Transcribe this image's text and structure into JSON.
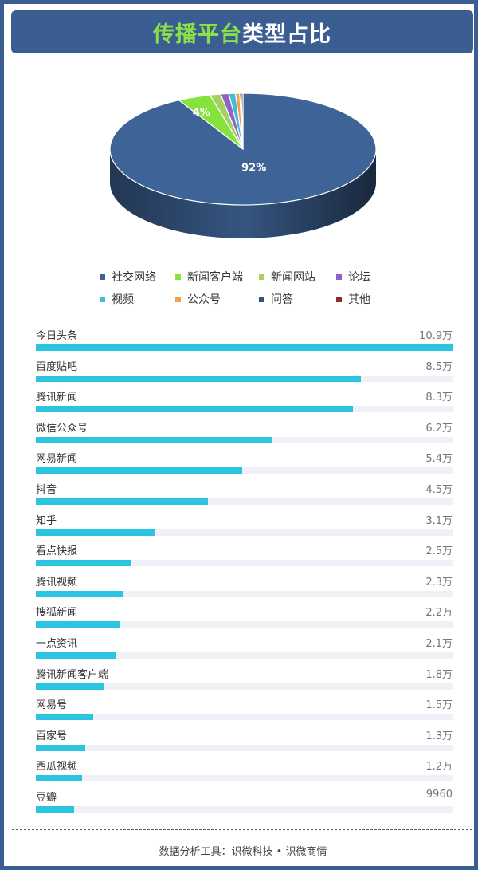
{
  "header": {
    "title_accent": "传播平台",
    "title_rest": "类型占比"
  },
  "colors": {
    "frame": "#3a5e91",
    "accent": "#8be04a",
    "bar": "#2cc5e1",
    "bar_track": "#eef2f6"
  },
  "chart_data": [
    {
      "type": "pie",
      "style": "3d",
      "categories": [
        "社交网络",
        "新闻客户端",
        "新闻网站",
        "论坛",
        "视频",
        "公众号",
        "问答",
        "其他"
      ],
      "values": [
        92,
        4,
        1.3,
        1,
        0.8,
        0.5,
        0.2,
        0.2
      ],
      "data_labels": [
        "92%",
        "4%",
        "",
        "",
        "",
        "",
        "",
        ""
      ],
      "colors": [
        "#3e6497",
        "#86e23c",
        "#a6d162",
        "#8c64c6",
        "#46b9d4",
        "#f0a04b",
        "#2f5380",
        "#8b2e2e"
      ],
      "legend_position": "bottom",
      "title": ""
    },
    {
      "type": "bar",
      "orientation": "horizontal",
      "unit_note": "万",
      "categories": [
        "今日头条",
        "百度贴吧",
        "腾讯新闻",
        "微信公众号",
        "网易新闻",
        "抖音",
        "知乎",
        "看点快报",
        "腾讯视频",
        "搜狐新闻",
        "一点资讯",
        "腾讯新闻客户端",
        "网易号",
        "百家号",
        "西瓜视频",
        "豆瓣"
      ],
      "values": [
        109000,
        85000,
        83000,
        62000,
        54000,
        45000,
        31000,
        25000,
        23000,
        22000,
        21000,
        18000,
        15000,
        13000,
        12000,
        9960
      ],
      "value_labels": [
        "10.9万",
        "8.5万",
        "8.3万",
        "6.2万",
        "5.4万",
        "4.5万",
        "3.1万",
        "2.5万",
        "2.3万",
        "2.2万",
        "2.1万",
        "1.8万",
        "1.5万",
        "1.3万",
        "1.2万",
        "9960"
      ],
      "xlim": [
        0,
        109000
      ],
      "title": ""
    }
  ],
  "footer": {
    "text": "数据分析工具：识微科技 • 识微商情"
  }
}
